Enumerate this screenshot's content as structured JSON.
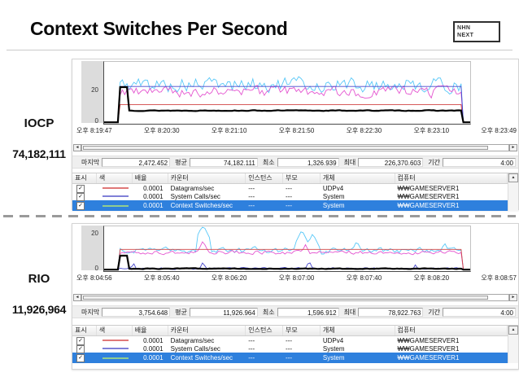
{
  "slide": {
    "title": "Context Switches Per Second"
  },
  "logo": {
    "line1": "NHN",
    "line2": "NEXT"
  },
  "icons": {
    "check": "✓",
    "scroll_left": "◄",
    "scroll_right": "►",
    "scroll_up": "▲"
  },
  "colors": {
    "selection": "#2e80dd",
    "divider": "#9a9a9a"
  },
  "sections": [
    {
      "label": "IOCP",
      "value": "74,182,111",
      "chart": {
        "y_ticks": [
          "20",
          "0"
        ],
        "x_labels": [
          "오후 8:19:47",
          "오후 8:20:30",
          "오후 8:21:10",
          "오후 8:21:50",
          "오후 8:22:30",
          "오후 8:23:10",
          "오후 8:23:49"
        ],
        "series": [
          {
            "name": "extra-counter-1",
            "color": "#58c8f8",
            "width": 0.9,
            "base": 23.5,
            "amp": 7.5,
            "seed": 5
          },
          {
            "name": "extra-counter-2",
            "color": "#e455d0",
            "width": 0.9,
            "base": 19,
            "amp": 5.5,
            "seed": 9
          },
          {
            "name": "datagrams-per-sec",
            "color": "#d04444",
            "width": 0.9,
            "base": 11.3,
            "flat": true
          },
          {
            "name": "system-calls-per-sec",
            "color": "#4848cc",
            "width": 0.9,
            "base": 22.4,
            "flat": true
          },
          {
            "name": "context-switches-per-sec",
            "color": "#000000",
            "width": 2.2,
            "base": 7.6,
            "amp": 0.35,
            "seed": 13,
            "peak": 22
          }
        ]
      },
      "stats": [
        {
          "label": "마지막",
          "value": "2,472.452"
        },
        {
          "label": "평균",
          "value": "74,182.111"
        },
        {
          "label": "최소",
          "value": "1,326.939"
        },
        {
          "label": "최대",
          "value": "226,370.603"
        },
        {
          "label": "기간",
          "value": "4:00"
        }
      ],
      "table": {
        "headers": [
          "표시",
          "색",
          "배율",
          "카운터",
          "인스턴스",
          "부모",
          "개체",
          "컴퓨터"
        ],
        "rows": [
          {
            "checked": true,
            "color": "#e07878",
            "scale": "0.0001",
            "counter": "Datagrams/sec",
            "instance": "---",
            "parent": "---",
            "object": "UDPv4",
            "computer": "₩₩GAMESERVER1",
            "selected": false
          },
          {
            "checked": true,
            "color": "#8080d8",
            "scale": "0.0001",
            "counter": "System Calls/sec",
            "instance": "---",
            "parent": "---",
            "object": "System",
            "computer": "₩₩GAMESERVER1",
            "selected": false
          },
          {
            "checked": true,
            "color": "#90cc90",
            "scale": "0.0001",
            "counter": "Context Switches/sec",
            "instance": "---",
            "parent": "---",
            "object": "System",
            "computer": "₩₩GAMESERVER1",
            "selected": true
          }
        ]
      }
    },
    {
      "label": "RIO",
      "value": "11,926,964",
      "chart": {
        "y_ticks": [
          "20",
          "0"
        ],
        "x_labels": [
          "오후 8:04:56",
          "오후 8:05:40",
          "오후 8:06:20",
          "오후 8:07:00",
          "오후 8:07:40",
          "오후 8:08:20",
          "오후 8:08:57"
        ],
        "series": [
          {
            "name": "extra-counter-1",
            "color": "#58c8f8",
            "width": 0.9,
            "base": 10.8,
            "amp": 2.4,
            "seed": 4,
            "spikes": [
              [
                27,
                25
              ],
              [
                41,
                14
              ],
              [
                54,
                22
              ],
              [
                57,
                20
              ],
              [
                69,
                16
              ],
              [
                93,
                15
              ]
            ]
          },
          {
            "name": "extra-counter-2",
            "color": "#e455d0",
            "width": 0.9,
            "base": 9.8,
            "amp": 1.7,
            "seed": 8,
            "spikes": [
              [
                27,
                16
              ],
              [
                55,
                14
              ]
            ]
          },
          {
            "name": "datagrams-per-sec",
            "color": "#d04444",
            "width": 0.9,
            "base": 11.4,
            "flat": true
          },
          {
            "name": "system-calls-per-sec",
            "color": "#4848cc",
            "width": 0.9,
            "base": 1.0,
            "amp": 0.8,
            "seed": 2,
            "spikes": [
              [
                8,
                4
              ],
              [
                27,
                4.5
              ],
              [
                56,
                5
              ],
              [
                85,
                3
              ]
            ]
          },
          {
            "name": "context-switches-per-sec",
            "color": "#000000",
            "width": 2.2,
            "base": 0.9,
            "amp": 0.3,
            "seed": 6,
            "peak": 8
          }
        ]
      },
      "stats": [
        {
          "label": "마지막",
          "value": "3,754.648"
        },
        {
          "label": "평균",
          "value": "11,926.964"
        },
        {
          "label": "최소",
          "value": "1,596.912"
        },
        {
          "label": "최대",
          "value": "78,922.763"
        },
        {
          "label": "기간",
          "value": "4:00"
        }
      ],
      "table": {
        "headers": [
          "표시",
          "색",
          "배율",
          "카운터",
          "인스턴스",
          "부모",
          "개체",
          "컴퓨터"
        ],
        "rows": [
          {
            "checked": true,
            "color": "#e07878",
            "scale": "0.0001",
            "counter": "Datagrams/sec",
            "instance": "---",
            "parent": "---",
            "object": "UDPv4",
            "computer": "₩₩GAMESERVER1",
            "selected": false
          },
          {
            "checked": true,
            "color": "#8080d8",
            "scale": "0.0001",
            "counter": "System Calls/sec",
            "instance": "---",
            "parent": "---",
            "object": "System",
            "computer": "₩₩GAMESERVER1",
            "selected": false
          },
          {
            "checked": true,
            "color": "#90cc90",
            "scale": "0.0001",
            "counter": "Context Switches/sec",
            "instance": "---",
            "parent": "---",
            "object": "System",
            "computer": "₩₩GAMESERVER1",
            "selected": true
          }
        ]
      }
    }
  ]
}
